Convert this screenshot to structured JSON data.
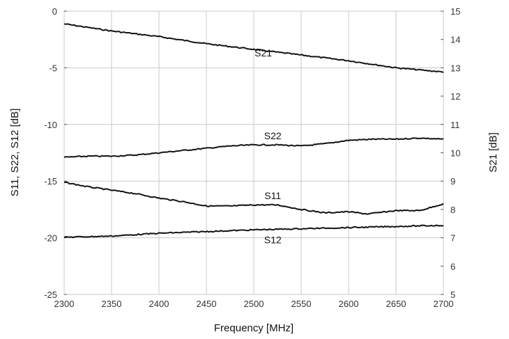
{
  "chart_data": {
    "type": "line",
    "xlabel": "Frequency [MHz]",
    "ylabel_left": "S11, S22, S12 [dB]",
    "ylabel_right": "S21 [dB]",
    "xlim": [
      2300,
      2700
    ],
    "ylim_left": [
      -25,
      0
    ],
    "ylim_right": [
      5,
      15
    ],
    "x_ticks": [
      2300,
      2350,
      2400,
      2450,
      2500,
      2550,
      2600,
      2650,
      2700
    ],
    "y_ticks_left": [
      0,
      -5,
      -10,
      -15,
      -20,
      -25
    ],
    "y_ticks_right": [
      15,
      14,
      13,
      12,
      11,
      10,
      9,
      8,
      7,
      6,
      5
    ],
    "grid": true,
    "legend": "none",
    "series": [
      {
        "name": "S21",
        "axis": "right",
        "color": "#111111",
        "label_at": [
          2510,
          13.4
        ],
        "x": [
          2300,
          2350,
          2400,
          2450,
          2500,
          2550,
          2600,
          2650,
          2700
        ],
        "values": [
          14.55,
          14.3,
          14.1,
          13.85,
          13.65,
          13.45,
          13.25,
          13.0,
          12.85
        ]
      },
      {
        "name": "S22",
        "axis": "left",
        "color": "#111111",
        "label_at": [
          2520,
          -11.3
        ],
        "x": [
          2300,
          2325,
          2350,
          2375,
          2400,
          2425,
          2450,
          2475,
          2500,
          2525,
          2550,
          2575,
          2600,
          2625,
          2650,
          2675,
          2700
        ],
        "values": [
          -12.9,
          -12.8,
          -12.8,
          -12.7,
          -12.5,
          -12.3,
          -12.1,
          -11.9,
          -11.8,
          -11.8,
          -11.9,
          -11.7,
          -11.4,
          -11.3,
          -11.3,
          -11.2,
          -11.3
        ]
      },
      {
        "name": "S11",
        "axis": "left",
        "color": "#111111",
        "label_at": [
          2520,
          -16.6
        ],
        "x": [
          2300,
          2325,
          2350,
          2375,
          2400,
          2425,
          2450,
          2475,
          2500,
          2525,
          2550,
          2575,
          2600,
          2620,
          2650,
          2675,
          2700
        ],
        "values": [
          -15.1,
          -15.5,
          -15.8,
          -16.1,
          -16.5,
          -16.8,
          -17.2,
          -17.2,
          -17.1,
          -17.1,
          -17.5,
          -17.8,
          -17.7,
          -17.9,
          -17.6,
          -17.6,
          -17.0
        ]
      },
      {
        "name": "S12",
        "axis": "left",
        "color": "#111111",
        "label_at": [
          2520,
          -20.5
        ],
        "x": [
          2300,
          2350,
          2400,
          2450,
          2500,
          2550,
          2600,
          2650,
          2700
        ],
        "values": [
          -19.95,
          -19.85,
          -19.6,
          -19.45,
          -19.3,
          -19.2,
          -19.1,
          -19.0,
          -18.9
        ]
      }
    ]
  }
}
